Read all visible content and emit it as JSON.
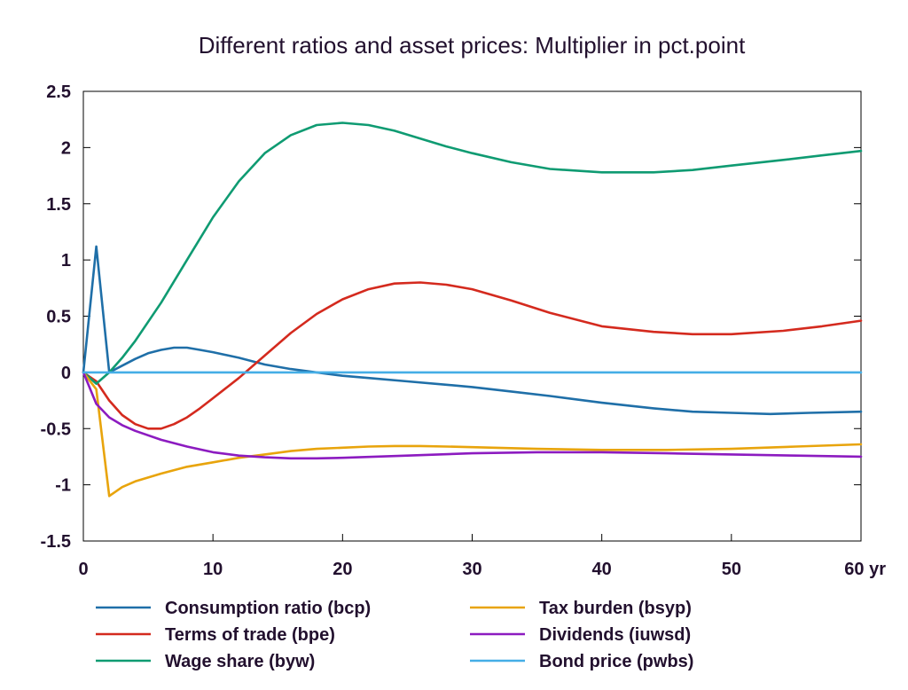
{
  "chart_data": {
    "type": "line",
    "title": "Different ratios and asset prices: Multiplier in pct.point",
    "xlabel": "",
    "ylabel": "",
    "xlim": [
      0,
      60
    ],
    "ylim": [
      -1.5,
      2.5
    ],
    "x_ticks": [
      0,
      10,
      20,
      30,
      40,
      50,
      60
    ],
    "x_tick_labels": [
      "0",
      "10",
      "20",
      "30",
      "40",
      "50",
      "60 yr"
    ],
    "y_ticks": [
      -1.5,
      -1,
      -0.5,
      0,
      0.5,
      1,
      1.5,
      2,
      2.5
    ],
    "y_tick_labels": [
      "-1.5",
      "-1",
      "-0.5",
      "0",
      "0.5",
      "1",
      "1.5",
      "2",
      "2.5"
    ],
    "grid": false,
    "legend_position": "bottom",
    "series": [
      {
        "name": "Consumption ratio (bcp)",
        "color": "#1f6fa8",
        "x": [
          0,
          1,
          2,
          3,
          4,
          5,
          6,
          7,
          8,
          9,
          10,
          12,
          14,
          16,
          18,
          20,
          22,
          25,
          28,
          30,
          33,
          36,
          40,
          44,
          47,
          50,
          53,
          56,
          60
        ],
        "y": [
          0,
          1.12,
          0,
          0.06,
          0.12,
          0.17,
          0.2,
          0.22,
          0.22,
          0.2,
          0.18,
          0.13,
          0.07,
          0.03,
          0.0,
          -0.03,
          -0.05,
          -0.08,
          -0.11,
          -0.13,
          -0.17,
          -0.21,
          -0.27,
          -0.32,
          -0.35,
          -0.36,
          -0.37,
          -0.36,
          -0.35
        ]
      },
      {
        "name": "Terms of trade (bpe)",
        "color": "#d42a1e",
        "x": [
          0,
          1,
          2,
          3,
          4,
          5,
          6,
          7,
          8,
          9,
          10,
          12,
          14,
          16,
          18,
          20,
          22,
          24,
          26,
          28,
          30,
          33,
          36,
          40,
          44,
          47,
          50,
          54,
          57,
          60
        ],
        "y": [
          0,
          -0.08,
          -0.25,
          -0.38,
          -0.46,
          -0.5,
          -0.5,
          -0.46,
          -0.4,
          -0.32,
          -0.23,
          -0.05,
          0.15,
          0.35,
          0.52,
          0.65,
          0.74,
          0.79,
          0.8,
          0.78,
          0.74,
          0.64,
          0.53,
          0.41,
          0.36,
          0.34,
          0.34,
          0.37,
          0.41,
          0.46
        ]
      },
      {
        "name": "Wage share (byw)",
        "color": "#0f9b72",
        "x": [
          0,
          1,
          2,
          3,
          4,
          6,
          8,
          10,
          12,
          14,
          16,
          18,
          20,
          22,
          24,
          26,
          28,
          30,
          33,
          36,
          40,
          42,
          44,
          47,
          50,
          54,
          57,
          60
        ],
        "y": [
          0,
          -0.1,
          0.0,
          0.13,
          0.28,
          0.62,
          1.0,
          1.38,
          1.7,
          1.95,
          2.11,
          2.2,
          2.22,
          2.2,
          2.15,
          2.08,
          2.01,
          1.95,
          1.87,
          1.81,
          1.78,
          1.78,
          1.78,
          1.8,
          1.84,
          1.89,
          1.93,
          1.97
        ]
      },
      {
        "name": "Tax burden (bsyp)",
        "color": "#e8a40c",
        "x": [
          0,
          1,
          2,
          3,
          4,
          6,
          8,
          10,
          12,
          14,
          16,
          18,
          20,
          22,
          24,
          26,
          28,
          30,
          35,
          40,
          45,
          50,
          55,
          60
        ],
        "y": [
          0,
          -0.15,
          -1.1,
          -1.02,
          -0.97,
          -0.9,
          -0.84,
          -0.8,
          -0.76,
          -0.73,
          -0.7,
          -0.68,
          -0.67,
          -0.66,
          -0.655,
          -0.655,
          -0.66,
          -0.665,
          -0.68,
          -0.69,
          -0.69,
          -0.68,
          -0.66,
          -0.64
        ]
      },
      {
        "name": "Dividends (iuwsd)",
        "color": "#8c1bc0",
        "x": [
          0,
          1,
          2,
          3,
          4,
          6,
          8,
          10,
          12,
          14,
          16,
          18,
          20,
          25,
          30,
          35,
          40,
          45,
          50,
          55,
          60
        ],
        "y": [
          0,
          -0.28,
          -0.4,
          -0.47,
          -0.52,
          -0.6,
          -0.66,
          -0.71,
          -0.74,
          -0.755,
          -0.765,
          -0.765,
          -0.76,
          -0.74,
          -0.72,
          -0.71,
          -0.71,
          -0.72,
          -0.73,
          -0.74,
          -0.75
        ]
      },
      {
        "name": "Bond price (pwbs)",
        "color": "#45aee6",
        "x": [
          0,
          60
        ],
        "y": [
          0,
          0
        ]
      }
    ]
  }
}
